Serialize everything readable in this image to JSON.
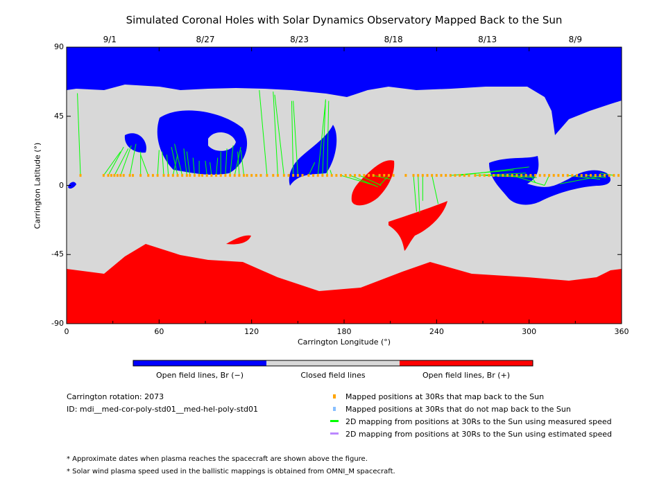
{
  "chart_data": {
    "type": "heatmap",
    "title": "Simulated Coronal Holes with Solar Dynamics Observatory Mapped Back to the Sun",
    "xlabel": "Carrington Longitude (°)",
    "ylabel": "Carrington Latitude (°)",
    "xlim": [
      0,
      360
    ],
    "ylim": [
      -90,
      90
    ],
    "xticks": [
      "0",
      "60",
      "120",
      "180",
      "240",
      "300",
      "360"
    ],
    "yticks": [
      "90",
      "45",
      "0",
      "-45",
      "-90"
    ],
    "top_dates": [
      {
        "lon": 28,
        "label": "9/1"
      },
      {
        "lon": 90,
        "label": "8/27"
      },
      {
        "lon": 151,
        "label": "8/23"
      },
      {
        "lon": 212,
        "label": "8/18"
      },
      {
        "lon": 273,
        "label": "8/13"
      },
      {
        "lon": 330,
        "label": "8/9"
      }
    ],
    "colorbar": [
      "Open field lines, Br (−)",
      "Closed field lines",
      "Open field lines, Br (+)"
    ],
    "colors": {
      "negative": "#0000ff",
      "closed": "#d8d8d8",
      "positive": "#ff0000",
      "mapped": "#ffa500",
      "unmapped": "#87bfff",
      "measured": "#00ff00",
      "estimated": "#bb88ff"
    },
    "mapped_latitude": 6.5,
    "mapped_longitudes": [
      9,
      24,
      27,
      29,
      31,
      33,
      35,
      37,
      41,
      43,
      48,
      53,
      56,
      59,
      63,
      66,
      69,
      72,
      75,
      78,
      80,
      83,
      86,
      88,
      91,
      94,
      97,
      100,
      103,
      106,
      109,
      112,
      115,
      117,
      120,
      123,
      126,
      130,
      134,
      137,
      141,
      144,
      147,
      150,
      153,
      157,
      160,
      163,
      166,
      169,
      172,
      175,
      178,
      181,
      184,
      187,
      190,
      193,
      196,
      199,
      203,
      206,
      209,
      212,
      220,
      225,
      228,
      231,
      234,
      237,
      240,
      243,
      246,
      249,
      252,
      255,
      258,
      261,
      265,
      268,
      271,
      274,
      277,
      280,
      283,
      286,
      289,
      292,
      295,
      298,
      301,
      304,
      307,
      310,
      313,
      316,
      319,
      322,
      325,
      328,
      331,
      334,
      337,
      340,
      343,
      346,
      349,
      352,
      355,
      358
    ],
    "mappings": [
      [
        9,
        7,
        60
      ],
      [
        24,
        35,
        22
      ],
      [
        27,
        37,
        25
      ],
      [
        31,
        40,
        24
      ],
      [
        35,
        42,
        26
      ],
      [
        41,
        45,
        27
      ],
      [
        48,
        48,
        22
      ],
      [
        53,
        48,
        20
      ],
      [
        59,
        60,
        23
      ],
      [
        63,
        62,
        22
      ],
      [
        66,
        65,
        20
      ],
      [
        69,
        72,
        20
      ],
      [
        72,
        68,
        25
      ],
      [
        75,
        70,
        27
      ],
      [
        78,
        76,
        24
      ],
      [
        80,
        78,
        22
      ],
      [
        83,
        82,
        18
      ],
      [
        86,
        86,
        16
      ],
      [
        91,
        90,
        16
      ],
      [
        94,
        93,
        15
      ],
      [
        97,
        98,
        18
      ],
      [
        100,
        100,
        22
      ],
      [
        103,
        104,
        24
      ],
      [
        106,
        108,
        26
      ],
      [
        109,
        113,
        25
      ],
      [
        112,
        111,
        22
      ],
      [
        115,
        113,
        23
      ],
      [
        130,
        125,
        62
      ],
      [
        137,
        134,
        61
      ],
      [
        141,
        135,
        59
      ],
      [
        147,
        146,
        55
      ],
      [
        150,
        147,
        55
      ],
      [
        157,
        161,
        15
      ],
      [
        163,
        168,
        55
      ],
      [
        166,
        168,
        56
      ],
      [
        169,
        170,
        55
      ],
      [
        172,
        171,
        10
      ],
      [
        178,
        200,
        0
      ],
      [
        184,
        202,
        -1
      ],
      [
        190,
        204,
        0
      ],
      [
        199,
        210,
        4
      ],
      [
        209,
        203,
        0
      ],
      [
        225,
        227,
        -17
      ],
      [
        228,
        229,
        -18
      ],
      [
        231,
        231,
        -10
      ],
      [
        237,
        241,
        -12
      ],
      [
        249,
        290,
        10
      ],
      [
        255,
        300,
        12
      ],
      [
        265,
        298,
        8
      ],
      [
        271,
        305,
        5
      ],
      [
        277,
        303,
        6
      ],
      [
        289,
        310,
        0
      ],
      [
        301,
        304,
        2
      ],
      [
        313,
        310,
        0
      ],
      [
        325,
        346,
        4
      ],
      [
        337,
        350,
        5
      ],
      [
        349,
        320,
        1
      ],
      [
        355,
        346,
        8
      ]
    ],
    "grid": false
  },
  "legend": {
    "rotation": "Carrington rotation: 2073",
    "id": "ID: mdi__med-cor-poly-std01__med-hel-poly-std01",
    "items": [
      "Mapped positions at 30Rs that map back to the Sun",
      "Mapped positions at 30Rs that do not map back to the Sun",
      "2D mapping from positions at 30Rs to the Sun using measured speed",
      "2D mapping from positions at 30Rs to the Sun using estimated speed"
    ],
    "notes": [
      "* Approximate dates when plasma reaches the spacecraft are shown above the figure.",
      "* Solar wind plasma speed used in the ballistic mappings is obtained from OMNI_M spacecraft."
    ]
  }
}
